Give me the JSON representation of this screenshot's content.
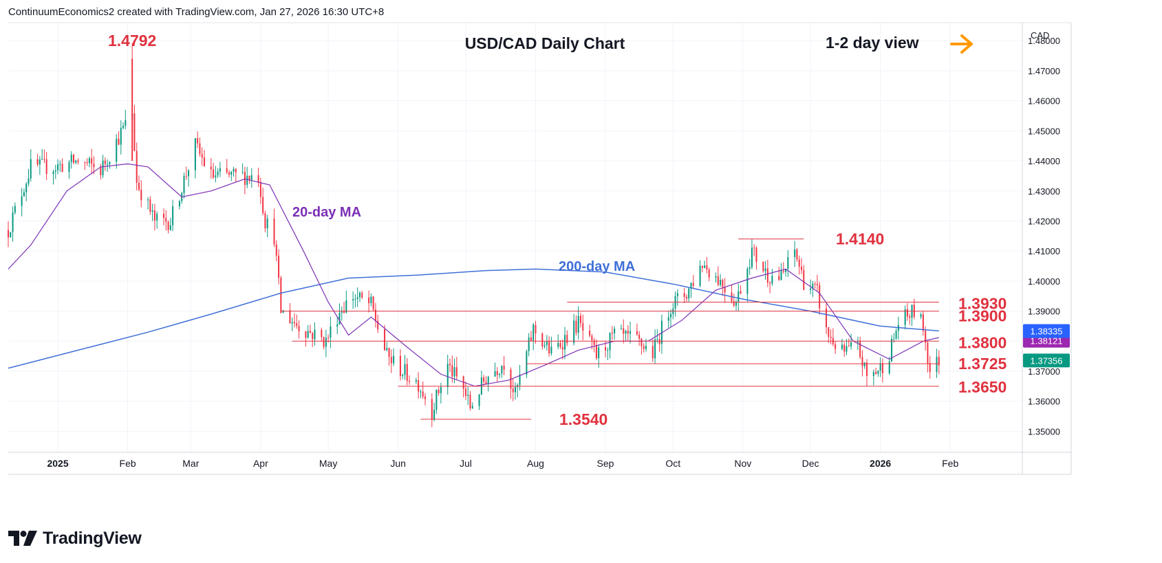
{
  "header": {
    "credit": "ContinuumEconomics2 created with TradingView.com, Jan 27, 2026 16:30 UTC+8"
  },
  "footer": {
    "brand": "TradingView"
  },
  "colors": {
    "up": "#089981",
    "down": "#f23645",
    "ma20": "#7b2fb5",
    "ma200": "#3f6fd8",
    "level": "#e0313f",
    "annotation": "#e0313f",
    "arrow": "#ff9800",
    "grid": "#f0f3fa"
  },
  "chart_data": {
    "type": "candlestick",
    "title": "USD/CAD Daily Chart",
    "subtitle": "1-2 day view",
    "currency": "CAD",
    "ylim": [
      1.343,
      1.486
    ],
    "y_ticks": [
      "1.48000",
      "1.47000",
      "1.46000",
      "1.45000",
      "1.44000",
      "1.43000",
      "1.42000",
      "1.41000",
      "1.40000",
      "1.39000",
      "1.38000",
      "1.37000",
      "1.36000",
      "1.35000"
    ],
    "y_tick_values": [
      1.48,
      1.47,
      1.46,
      1.45,
      1.44,
      1.43,
      1.42,
      1.41,
      1.4,
      1.39,
      1.38,
      1.37,
      1.36,
      1.35
    ],
    "x_ticks": [
      "2025",
      "Feb",
      "Mar",
      "Apr",
      "May",
      "Jun",
      "Jul",
      "Aug",
      "Sep",
      "Oct",
      "Nov",
      "Dec",
      "2026",
      "Feb"
    ],
    "x_tick_dates": [
      "2025-01-01",
      "2025-02-01",
      "2025-03-01",
      "2025-04-01",
      "2025-05-01",
      "2025-06-01",
      "2025-07-01",
      "2025-08-01",
      "2025-09-01",
      "2025-10-01",
      "2025-11-01",
      "2025-12-01",
      "2026-01-01",
      "2026-02-01"
    ],
    "date_range": [
      "2024-12-10",
      "2026-03-05"
    ],
    "candle_start_date": "2024-12-10",
    "candle_anchors": [
      [
        "2024-12-10",
        1.417
      ],
      [
        "2024-12-20",
        1.438
      ],
      [
        "2024-12-31",
        1.438
      ],
      [
        "2025-01-10",
        1.44
      ],
      [
        "2025-01-20",
        1.437
      ],
      [
        "2025-01-31",
        1.452
      ],
      [
        "2025-02-02",
        1.468
      ],
      [
        "2025-02-05",
        1.433
      ],
      [
        "2025-02-13",
        1.42
      ],
      [
        "2025-02-20",
        1.42
      ],
      [
        "2025-03-03",
        1.445
      ],
      [
        "2025-03-10",
        1.435
      ],
      [
        "2025-03-20",
        1.435
      ],
      [
        "2025-03-31",
        1.435
      ],
      [
        "2025-04-03",
        1.42
      ],
      [
        "2025-04-07",
        1.415
      ],
      [
        "2025-04-10",
        1.39
      ],
      [
        "2025-04-18",
        1.385
      ],
      [
        "2025-04-30",
        1.38
      ],
      [
        "2025-05-06",
        1.39
      ],
      [
        "2025-05-12",
        1.395
      ],
      [
        "2025-05-20",
        1.392
      ],
      [
        "2025-05-27",
        1.375
      ],
      [
        "2025-06-03",
        1.37
      ],
      [
        "2025-06-10",
        1.366
      ],
      [
        "2025-06-16",
        1.357
      ],
      [
        "2025-06-23",
        1.372
      ],
      [
        "2025-06-30",
        1.364
      ],
      [
        "2025-07-03",
        1.358
      ],
      [
        "2025-07-10",
        1.368
      ],
      [
        "2025-07-18",
        1.373
      ],
      [
        "2025-07-23",
        1.362
      ],
      [
        "2025-07-31",
        1.384
      ],
      [
        "2025-08-08",
        1.376
      ],
      [
        "2025-08-20",
        1.386
      ],
      [
        "2025-08-28",
        1.375
      ],
      [
        "2025-09-05",
        1.382
      ],
      [
        "2025-09-15",
        1.38
      ],
      [
        "2025-09-22",
        1.376
      ],
      [
        "2025-09-30",
        1.392
      ],
      [
        "2025-10-07",
        1.396
      ],
      [
        "2025-10-14",
        1.406
      ],
      [
        "2025-10-22",
        1.4
      ],
      [
        "2025-10-29",
        1.393
      ],
      [
        "2025-11-05",
        1.41
      ],
      [
        "2025-11-12",
        1.402
      ],
      [
        "2025-11-18",
        1.401
      ],
      [
        "2025-11-24",
        1.41
      ],
      [
        "2025-11-28",
        1.4
      ],
      [
        "2025-12-04",
        1.396
      ],
      [
        "2025-12-08",
        1.383
      ],
      [
        "2025-12-15",
        1.376
      ],
      [
        "2025-12-22",
        1.378
      ],
      [
        "2025-12-26",
        1.368
      ],
      [
        "2026-01-01",
        1.371
      ],
      [
        "2026-01-05",
        1.376
      ],
      [
        "2026-01-09",
        1.386
      ],
      [
        "2026-01-16",
        1.39
      ],
      [
        "2026-01-20",
        1.385
      ],
      [
        "2026-01-23",
        1.37
      ],
      [
        "2026-01-27",
        1.3736
      ]
    ],
    "ma20_points": [
      [
        "2024-12-10",
        1.404
      ],
      [
        "2024-12-20",
        1.412
      ],
      [
        "2025-01-05",
        1.43
      ],
      [
        "2025-01-20",
        1.438
      ],
      [
        "2025-02-01",
        1.439
      ],
      [
        "2025-02-10",
        1.438
      ],
      [
        "2025-02-25",
        1.428
      ],
      [
        "2025-03-10",
        1.43
      ],
      [
        "2025-03-25",
        1.434
      ],
      [
        "2025-04-05",
        1.432
      ],
      [
        "2025-04-20",
        1.41
      ],
      [
        "2025-05-01",
        1.393
      ],
      [
        "2025-05-10",
        1.382
      ],
      [
        "2025-05-20",
        1.388
      ],
      [
        "2025-06-05",
        1.378
      ],
      [
        "2025-06-20",
        1.369
      ],
      [
        "2025-07-05",
        1.365
      ],
      [
        "2025-07-20",
        1.367
      ],
      [
        "2025-08-05",
        1.372
      ],
      [
        "2025-08-20",
        1.377
      ],
      [
        "2025-09-05",
        1.38
      ],
      [
        "2025-09-20",
        1.38
      ],
      [
        "2025-10-05",
        1.387
      ],
      [
        "2025-10-20",
        1.397
      ],
      [
        "2025-11-05",
        1.401
      ],
      [
        "2025-11-20",
        1.404
      ],
      [
        "2025-12-05",
        1.396
      ],
      [
        "2025-12-20",
        1.38
      ],
      [
        "2026-01-05",
        1.374
      ],
      [
        "2026-01-20",
        1.38
      ],
      [
        "2026-01-27",
        1.3812
      ]
    ],
    "ma200_points": [
      [
        "2024-12-10",
        1.371
      ],
      [
        "2025-01-10",
        1.377
      ],
      [
        "2025-02-10",
        1.383
      ],
      [
        "2025-03-10",
        1.389
      ],
      [
        "2025-04-10",
        1.396
      ],
      [
        "2025-05-10",
        1.401
      ],
      [
        "2025-06-10",
        1.402
      ],
      [
        "2025-07-10",
        1.4035
      ],
      [
        "2025-08-01",
        1.404
      ],
      [
        "2025-09-01",
        1.403
      ],
      [
        "2025-10-01",
        1.399
      ],
      [
        "2025-11-01",
        1.394
      ],
      [
        "2025-12-01",
        1.39
      ],
      [
        "2026-01-01",
        1.385
      ],
      [
        "2026-01-27",
        1.3834
      ]
    ],
    "levels": [
      {
        "label": "1.4140",
        "value": 1.414,
        "from": "2025-10-30",
        "to": "2025-11-28"
      },
      {
        "label": "1.3930",
        "value": 1.393,
        "from": "2025-08-15",
        "to": "2026-01-27"
      },
      {
        "label": "1.3900",
        "value": 1.39,
        "from": "2025-04-10",
        "to": "2026-01-27"
      },
      {
        "label": "1.3800",
        "value": 1.38,
        "from": "2025-04-15",
        "to": "2026-01-27"
      },
      {
        "label": "1.3725",
        "value": 1.3725,
        "from": "2025-07-28",
        "to": "2026-01-27"
      },
      {
        "label": "1.3650",
        "value": 1.365,
        "from": "2025-06-01",
        "to": "2026-01-27"
      },
      {
        "label": "1.3540",
        "value": 1.354,
        "from": "2025-06-11",
        "to": "2025-07-30"
      }
    ],
    "peak_label": {
      "label": "1.4792",
      "value": 1.4792,
      "date": "2025-02-03"
    },
    "ma_labels": {
      "ma20": "20-day MA",
      "ma200": "200-day MA"
    },
    "price_tags": [
      {
        "label": "1.38335",
        "value": 1.38335,
        "color": "#2962ff"
      },
      {
        "label": "1.38121",
        "value": 1.38121,
        "color": "#9c27b0"
      },
      {
        "label": "1.37356",
        "value": 1.37356,
        "color": "#089981"
      }
    ]
  }
}
